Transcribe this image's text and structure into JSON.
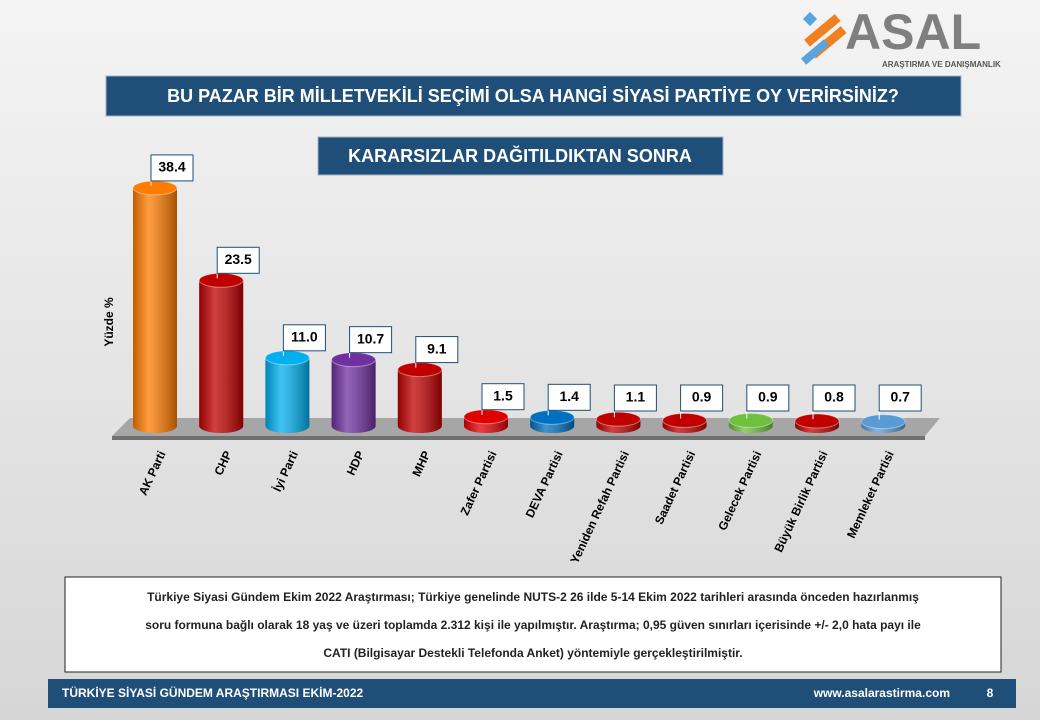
{
  "logo": {
    "name": "ASAL",
    "tagline": "ARAŞTIRMA VE DANIŞMANLIK"
  },
  "chart_data": {
    "type": "bar",
    "title": "BU PAZAR BİR MİLLETVEKİLİ SEÇİMİ OLSA HANGİ SİYASİ PARTİYE OY VERİRSİNİZ?",
    "subtitle": "KARARSIZLAR DAĞITILDIKTAN SONRA",
    "y_label": "Yüzde %",
    "categories": [
      "AK Parti",
      "CHP",
      "İyi Parti",
      "HDP",
      "MHP",
      "Zafer Partisi",
      "DEVA Partisi",
      "Yeniden Refah Partisi",
      "Saadet Partisi",
      "Gelecek Partisi",
      "Büyük Birlik Partisi",
      "Memleket Partisi"
    ],
    "values": [
      38.4,
      23.5,
      11.0,
      10.7,
      9.1,
      1.5,
      1.4,
      1.1,
      0.9,
      0.9,
      0.8,
      0.7
    ],
    "value_labels": [
      "38.4",
      "23.5",
      "11.0",
      "10.7",
      "9.1",
      "1.5",
      "1.4",
      "1.1",
      "0.9",
      "0.9",
      "0.8",
      "0.7"
    ],
    "colors": [
      "#ff7c00",
      "#c00000",
      "#00b0f0",
      "#7030a0",
      "#c00000",
      "#e00000",
      "#0070c0",
      "#c00000",
      "#c00000",
      "#70c040",
      "#c00000",
      "#5b9bd5"
    ]
  },
  "note": [
    "Türkiye Siyasi Gündem Ekim 2022 Araştırması; Türkiye genelinde NUTS-2 26 ilde 5-14 Ekim 2022  tarihleri arasında önceden hazırlanmış",
    "soru formuna bağlı olarak 18 yaş ve üzeri toplamda 2.312 kişi ile yapılmıştır. Araştırma; 0,95 güven sınırları içerisinde +/- 2,0 hata payı ile",
    "CATI (Bilgisayar Destekli Telefonda Anket) yöntemiyle gerçekleştirilmiştir."
  ],
  "footer": {
    "left": "TÜRKİYE SİYASİ GÜNDEM ARAŞTIRMASI EKİM-2022",
    "url": "www.asalarastirma.com",
    "page": "8"
  }
}
